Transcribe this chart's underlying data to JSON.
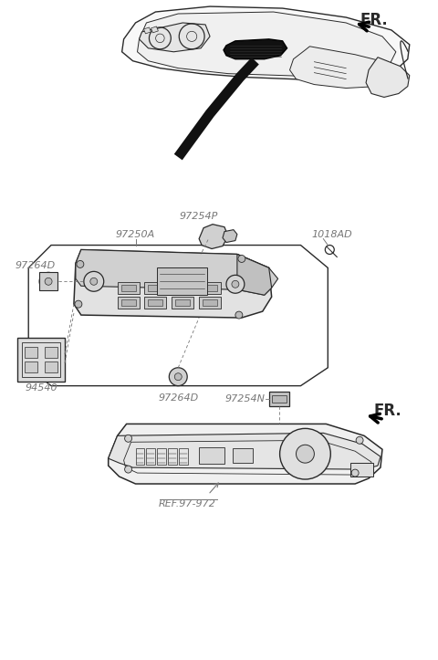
{
  "bg_color": "#ffffff",
  "line_color": "#2a2a2a",
  "gray_color": "#777777",
  "figsize": [
    4.8,
    7.23
  ],
  "dpi": 100,
  "labels": {
    "FR_top": "FR.",
    "FR_bottom": "FR.",
    "97250A": "97250A",
    "1018AD": "1018AD",
    "97254P": "97254P",
    "97264D_left": "97264D",
    "97264D_bot": "97264D",
    "94540": "94540",
    "97254N": "97254N",
    "REF97972": "REF.97-972"
  }
}
